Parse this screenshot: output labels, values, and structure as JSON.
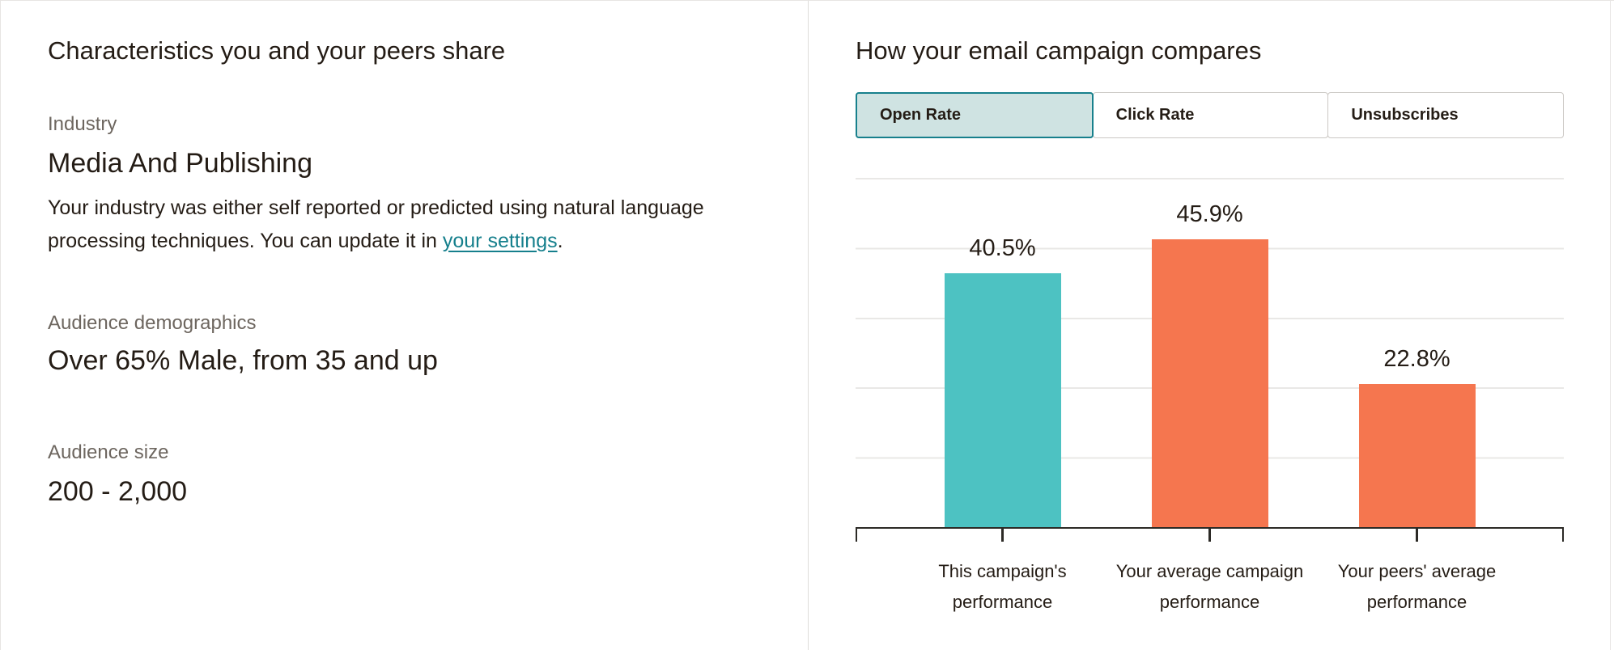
{
  "left_panel": {
    "heading": "Characteristics you and your peers share",
    "industry": {
      "label": "Industry",
      "value": "Media And Publishing",
      "note_before": "Your industry was either self reported or predicted using natural language processing techniques. You can update it in ",
      "link_text": "your settings",
      "note_after": "."
    },
    "demographics": {
      "label": "Audience demographics",
      "value": "Over 65% Male, from 35 and up"
    },
    "audience_size": {
      "label": "Audience size",
      "value": "200 - 2,000"
    }
  },
  "right_panel": {
    "heading": "How your email campaign compares",
    "tabs": [
      {
        "label": "Open Rate",
        "active": true
      },
      {
        "label": "Click Rate",
        "active": false
      },
      {
        "label": "Unsubscribes",
        "active": false
      }
    ]
  },
  "chart_data": {
    "type": "bar",
    "title": "How your email campaign compares",
    "metric": "Open Rate",
    "categories": [
      "This campaign's performance",
      "Your average campaign performance",
      "Your peers' average performance"
    ],
    "category_lines": [
      [
        "This campaign's",
        "performance"
      ],
      [
        "Your average campaign",
        "performance"
      ],
      [
        "Your peers' average",
        "performance"
      ]
    ],
    "values": [
      40.5,
      45.9,
      22.8
    ],
    "value_labels": [
      "40.5%",
      "45.9%",
      "22.8%"
    ],
    "unit": "%",
    "bar_colors": [
      "#4dc2c2",
      "#f5764f",
      "#f5764f"
    ],
    "ylim": [
      0,
      55.7
    ],
    "gridlines": {
      "orientation": "horizontal",
      "count": 6,
      "labeled": false
    },
    "legend": "none"
  },
  "colors": {
    "this_campaign_teal": "#4dc2c2",
    "benchmark_orange": "#f5764f",
    "link_teal": "#157f8c",
    "active_tab_bg": "#cfe3e2",
    "active_tab_border": "#17808c",
    "text_dark": "#241c15",
    "text_gray": "#6d665f",
    "gridline": "#e9e8e6",
    "axis": "#2c2a26"
  }
}
